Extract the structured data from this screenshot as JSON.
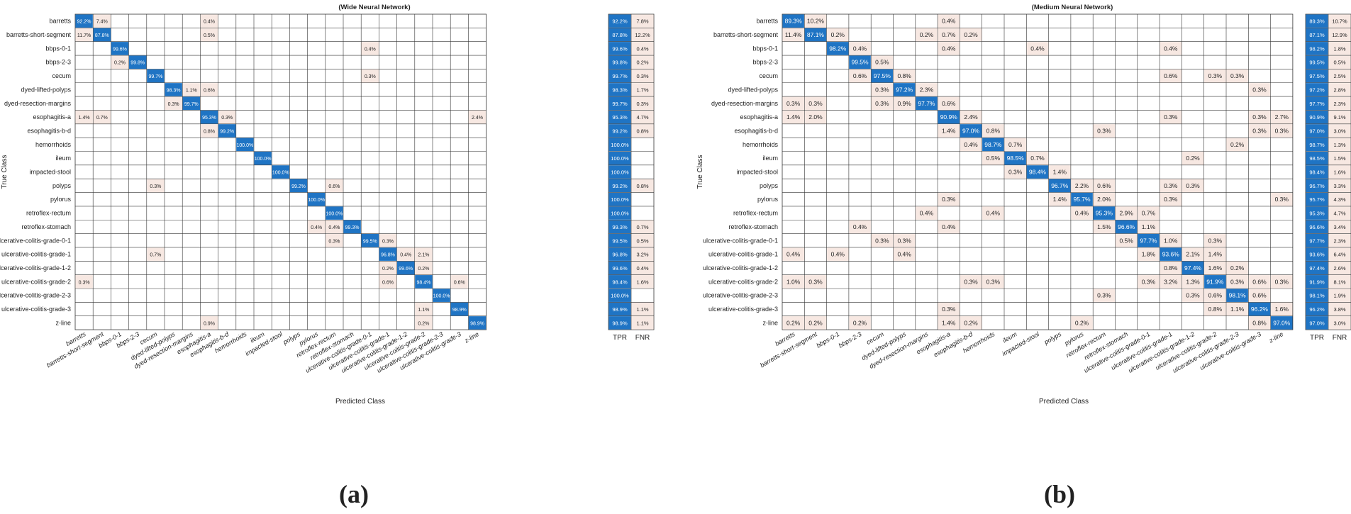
{
  "class_names": [
    "barretts",
    "barretts-short-segment",
    "bbps-0-1",
    "bbps-2-3",
    "cecum",
    "dyed-lifted-polyps",
    "dyed-resection-margins",
    "esophagitis-a",
    "esophagitis-b-d",
    "hemorrhoids",
    "ileum",
    "impacted-stool",
    "polyps",
    "pylorus",
    "retroflex-rectum",
    "retroflex-stomach",
    "ulcerative-colitis-grade-0-1",
    "ulcerative-colitis-grade-1",
    "ulcerative-colitis-grade-1-2",
    "ulcerative-colitis-grade-2",
    "ulcerative-colitis-grade-2-3",
    "ulcerative-colitis-grade-3",
    "z-line"
  ],
  "colors": {
    "diag": "#1f74c4",
    "diag_text": "#ffffff",
    "offdiag": "#f7e8e2",
    "grid": "#333333"
  },
  "chart_data": [
    {
      "type": "heatmap",
      "panel_label": "(a)",
      "title": "(Wide Neural Network)",
      "xlabel": "Predicted Class",
      "ylabel": "True Class",
      "summary_headers": [
        "TPR",
        "FNR"
      ],
      "cells": [
        [
          [
            0,
            0,
            "92.2%"
          ],
          [
            0,
            1,
            "7.4%"
          ],
          [
            0,
            7,
            "0.4%"
          ]
        ],
        [
          [
            1,
            0,
            "11.7%"
          ],
          [
            1,
            1,
            "87.8%"
          ],
          [
            1,
            7,
            "0.5%"
          ]
        ],
        [
          [
            2,
            2,
            "99.6%"
          ],
          [
            2,
            16,
            "0.4%"
          ]
        ],
        [
          [
            3,
            2,
            "0.2%"
          ],
          [
            3,
            3,
            "99.8%"
          ]
        ],
        [
          [
            4,
            4,
            "99.7%"
          ],
          [
            4,
            16,
            "0.3%"
          ]
        ],
        [
          [
            5,
            5,
            "98.3%"
          ],
          [
            5,
            6,
            "1.1%"
          ],
          [
            5,
            7,
            "0.6%"
          ]
        ],
        [
          [
            6,
            5,
            "0.3%"
          ],
          [
            6,
            6,
            "99.7%"
          ]
        ],
        [
          [
            7,
            0,
            "1.4%"
          ],
          [
            7,
            1,
            "0.7%"
          ],
          [
            7,
            7,
            "95.3%"
          ],
          [
            7,
            8,
            "0.3%"
          ],
          [
            7,
            22,
            "2.4%"
          ]
        ],
        [
          [
            8,
            7,
            "0.8%"
          ],
          [
            8,
            8,
            "99.2%"
          ]
        ],
        [
          [
            9,
            9,
            "100.0%"
          ]
        ],
        [
          [
            10,
            10,
            "100.0%"
          ]
        ],
        [
          [
            11,
            11,
            "100.0%"
          ]
        ],
        [
          [
            12,
            4,
            "0.3%"
          ],
          [
            12,
            12,
            "99.2%"
          ],
          [
            12,
            14,
            "0.6%"
          ]
        ],
        [
          [
            13,
            13,
            "100.0%"
          ]
        ],
        [
          [
            14,
            14,
            "100.0%"
          ]
        ],
        [
          [
            15,
            13,
            "0.4%"
          ],
          [
            15,
            14,
            "0.4%"
          ],
          [
            15,
            15,
            "99.3%"
          ]
        ],
        [
          [
            16,
            14,
            "0.3%"
          ],
          [
            16,
            16,
            "99.5%"
          ],
          [
            16,
            17,
            "0.3%"
          ]
        ],
        [
          [
            17,
            4,
            "0.7%"
          ],
          [
            17,
            17,
            "96.8%"
          ],
          [
            17,
            18,
            "0.4%"
          ],
          [
            17,
            19,
            "2.1%"
          ]
        ],
        [
          [
            18,
            17,
            "0.2%"
          ],
          [
            18,
            18,
            "99.6%"
          ],
          [
            18,
            19,
            "0.2%"
          ]
        ],
        [
          [
            19,
            0,
            "0.3%"
          ],
          [
            19,
            17,
            "0.6%"
          ],
          [
            19,
            19,
            "98.4%"
          ],
          [
            19,
            21,
            "0.6%"
          ]
        ],
        [
          [
            20,
            20,
            "100.0%"
          ]
        ],
        [
          [
            21,
            19,
            "1.1%"
          ],
          [
            21,
            21,
            "98.9%"
          ]
        ],
        [
          [
            22,
            7,
            "0.9%"
          ],
          [
            22,
            19,
            "0.2%"
          ],
          [
            22,
            22,
            "98.9%"
          ]
        ]
      ],
      "tpr": [
        "92.2%",
        "87.8%",
        "99.6%",
        "99.8%",
        "99.7%",
        "98.3%",
        "99.7%",
        "95.3%",
        "99.2%",
        "100.0%",
        "100.0%",
        "100.0%",
        "99.2%",
        "100.0%",
        "100.0%",
        "99.3%",
        "99.5%",
        "96.8%",
        "99.6%",
        "98.4%",
        "100.0%",
        "98.9%",
        "98.9%"
      ],
      "fnr": [
        "7.8%",
        "12.2%",
        "0.4%",
        "0.2%",
        "0.3%",
        "1.7%",
        "0.3%",
        "4.7%",
        "0.8%",
        "",
        "",
        "",
        "0.8%",
        "",
        "",
        "0.7%",
        "0.5%",
        "3.2%",
        "0.4%",
        "1.6%",
        "",
        "1.1%",
        "1.1%"
      ]
    },
    {
      "type": "heatmap",
      "panel_label": "(b)",
      "title": "(Medium Neural Network)",
      "xlabel": "Predicted Class",
      "ylabel": "True Class",
      "summary_headers": [
        "TPR",
        "FNR"
      ],
      "cells": [
        [
          [
            0,
            0,
            "89.3%"
          ],
          [
            0,
            1,
            "10.2%"
          ],
          [
            0,
            7,
            "0.4%"
          ]
        ],
        [
          [
            1,
            0,
            "11.4%"
          ],
          [
            1,
            1,
            "87.1%"
          ],
          [
            1,
            2,
            "0.2%"
          ],
          [
            1,
            6,
            "0.2%"
          ],
          [
            1,
            7,
            "0.7%"
          ],
          [
            1,
            8,
            "0.2%"
          ]
        ],
        [
          [
            2,
            2,
            "98.2%"
          ],
          [
            2,
            3,
            "0.4%"
          ],
          [
            2,
            7,
            "0.4%"
          ],
          [
            2,
            11,
            "0.4%"
          ],
          [
            2,
            17,
            "0.4%"
          ]
        ],
        [
          [
            3,
            3,
            "99.5%"
          ],
          [
            3,
            4,
            "0.5%"
          ]
        ],
        [
          [
            4,
            3,
            "0.6%"
          ],
          [
            4,
            4,
            "97.5%"
          ],
          [
            4,
            5,
            "0.8%"
          ],
          [
            4,
            17,
            "0.6%"
          ],
          [
            4,
            19,
            "0.3%"
          ],
          [
            4,
            20,
            "0.3%"
          ]
        ],
        [
          [
            5,
            4,
            "0.3%"
          ],
          [
            5,
            5,
            "97.2%"
          ],
          [
            5,
            6,
            "2.3%"
          ],
          [
            5,
            21,
            "0.3%"
          ]
        ],
        [
          [
            6,
            0,
            "0.3%"
          ],
          [
            6,
            1,
            "0.3%"
          ],
          [
            6,
            4,
            "0.3%"
          ],
          [
            6,
            5,
            "0.9%"
          ],
          [
            6,
            6,
            "97.7%"
          ],
          [
            6,
            7,
            "0.6%"
          ]
        ],
        [
          [
            7,
            0,
            "1.4%"
          ],
          [
            7,
            1,
            "2.0%"
          ],
          [
            7,
            7,
            "90.9%"
          ],
          [
            7,
            8,
            "2.4%"
          ],
          [
            7,
            17,
            "0.3%"
          ],
          [
            7,
            21,
            "0.3%"
          ],
          [
            7,
            22,
            "2.7%"
          ]
        ],
        [
          [
            8,
            7,
            "1.4%"
          ],
          [
            8,
            8,
            "97.0%"
          ],
          [
            8,
            9,
            "0.8%"
          ],
          [
            8,
            14,
            "0.3%"
          ],
          [
            8,
            21,
            "0.3%"
          ],
          [
            8,
            22,
            "0.3%"
          ]
        ],
        [
          [
            9,
            8,
            "0.4%"
          ],
          [
            9,
            9,
            "98.7%"
          ],
          [
            9,
            10,
            "0.7%"
          ],
          [
            9,
            20,
            "0.2%"
          ]
        ],
        [
          [
            10,
            9,
            "0.5%"
          ],
          [
            10,
            10,
            "98.5%"
          ],
          [
            10,
            11,
            "0.7%"
          ],
          [
            10,
            18,
            "0.2%"
          ]
        ],
        [
          [
            11,
            10,
            "0.3%"
          ],
          [
            11,
            11,
            "98.4%"
          ],
          [
            11,
            12,
            "1.4%"
          ]
        ],
        [
          [
            12,
            12,
            "96.7%"
          ],
          [
            12,
            13,
            "2.2%"
          ],
          [
            12,
            14,
            "0.6%"
          ],
          [
            12,
            17,
            "0.3%"
          ],
          [
            12,
            18,
            "0.3%"
          ]
        ],
        [
          [
            13,
            7,
            "0.3%"
          ],
          [
            13,
            12,
            "1.4%"
          ],
          [
            13,
            13,
            "95.7%"
          ],
          [
            13,
            14,
            "2.0%"
          ],
          [
            13,
            17,
            "0.3%"
          ],
          [
            13,
            22,
            "0.3%"
          ]
        ],
        [
          [
            14,
            6,
            "0.4%"
          ],
          [
            14,
            9,
            "0.4%"
          ],
          [
            14,
            13,
            "0.4%"
          ],
          [
            14,
            14,
            "95.3%"
          ],
          [
            14,
            15,
            "2.9%"
          ],
          [
            14,
            16,
            "0.7%"
          ]
        ],
        [
          [
            15,
            3,
            "0.4%"
          ],
          [
            15,
            7,
            "0.4%"
          ],
          [
            15,
            14,
            "1.5%"
          ],
          [
            15,
            15,
            "96.6%"
          ],
          [
            15,
            16,
            "1.1%"
          ]
        ],
        [
          [
            16,
            4,
            "0.3%"
          ],
          [
            16,
            5,
            "0.3%"
          ],
          [
            16,
            15,
            "0.5%"
          ],
          [
            16,
            16,
            "97.7%"
          ],
          [
            16,
            17,
            "1.0%"
          ],
          [
            16,
            19,
            "0.3%"
          ]
        ],
        [
          [
            17,
            0,
            "0.4%"
          ],
          [
            17,
            2,
            "0.4%"
          ],
          [
            17,
            5,
            "0.4%"
          ],
          [
            17,
            16,
            "1.8%"
          ],
          [
            17,
            17,
            "93.6%"
          ],
          [
            17,
            18,
            "2.1%"
          ],
          [
            17,
            19,
            "1.4%"
          ]
        ],
        [
          [
            18,
            17,
            "0.8%"
          ],
          [
            18,
            18,
            "97.4%"
          ],
          [
            18,
            19,
            "1.6%"
          ],
          [
            18,
            20,
            "0.2%"
          ]
        ],
        [
          [
            19,
            0,
            "1.0%"
          ],
          [
            19,
            1,
            "0.3%"
          ],
          [
            19,
            8,
            "0.3%"
          ],
          [
            19,
            9,
            "0.3%"
          ],
          [
            19,
            16,
            "0.3%"
          ],
          [
            19,
            17,
            "3.2%"
          ],
          [
            19,
            18,
            "1.3%"
          ],
          [
            19,
            19,
            "91.9%"
          ],
          [
            19,
            20,
            "0.3%"
          ],
          [
            19,
            21,
            "0.6%"
          ],
          [
            19,
            22,
            "0.3%"
          ]
        ],
        [
          [
            20,
            14,
            "0.3%"
          ],
          [
            20,
            18,
            "0.3%"
          ],
          [
            20,
            19,
            "0.6%"
          ],
          [
            20,
            20,
            "98.1%"
          ],
          [
            20,
            21,
            "0.6%"
          ]
        ],
        [
          [
            21,
            7,
            "0.3%"
          ],
          [
            21,
            19,
            "0.8%"
          ],
          [
            21,
            20,
            "1.1%"
          ],
          [
            21,
            21,
            "96.2%"
          ],
          [
            21,
            22,
            "1.6%"
          ]
        ],
        [
          [
            22,
            0,
            "0.2%"
          ],
          [
            22,
            1,
            "0.2%"
          ],
          [
            22,
            3,
            "0.2%"
          ],
          [
            22,
            7,
            "1.4%"
          ],
          [
            22,
            8,
            "0.2%"
          ],
          [
            22,
            13,
            "0.2%"
          ],
          [
            22,
            21,
            "0.8%"
          ],
          [
            22,
            22,
            "97.0%"
          ]
        ]
      ],
      "tpr": [
        "89.3%",
        "87.1%",
        "98.2%",
        "99.5%",
        "97.5%",
        "97.2%",
        "97.7%",
        "90.9%",
        "97.0%",
        "98.7%",
        "98.5%",
        "98.4%",
        "96.7%",
        "95.7%",
        "95.3%",
        "96.6%",
        "97.7%",
        "93.6%",
        "97.4%",
        "91.9%",
        "98.1%",
        "96.2%",
        "97.0%"
      ],
      "fnr": [
        "10.7%",
        "12.9%",
        "1.8%",
        "0.5%",
        "2.5%",
        "2.8%",
        "2.3%",
        "9.1%",
        "3.0%",
        "1.3%",
        "1.5%",
        "1.6%",
        "3.3%",
        "4.3%",
        "4.7%",
        "3.4%",
        "2.3%",
        "6.4%",
        "2.6%",
        "8.1%",
        "1.9%",
        "3.8%",
        "3.0%"
      ]
    }
  ]
}
